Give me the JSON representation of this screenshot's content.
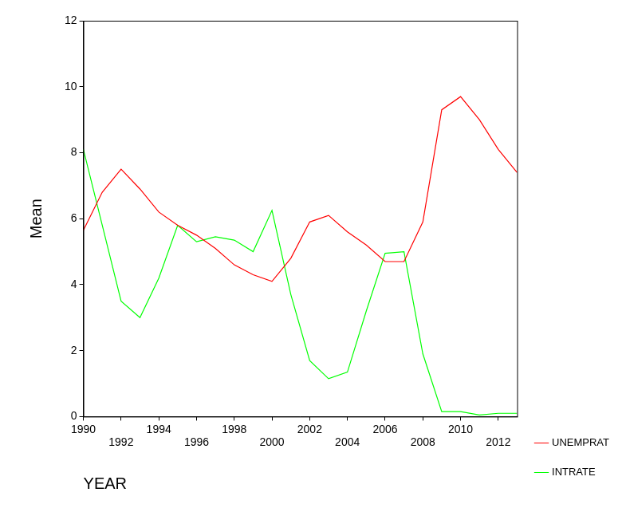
{
  "chart_data": {
    "type": "line",
    "x": [
      1990,
      1991,
      1992,
      1993,
      1994,
      1995,
      1996,
      1997,
      1998,
      1999,
      2000,
      2001,
      2002,
      2003,
      2004,
      2005,
      2006,
      2007,
      2008,
      2009,
      2010,
      2011,
      2012,
      2013
    ],
    "series": [
      {
        "name": "UNEMPRAT",
        "color": "#ff0000",
        "values": [
          5.65,
          6.8,
          7.5,
          6.9,
          6.2,
          5.8,
          5.5,
          5.1,
          4.6,
          4.3,
          4.1,
          4.8,
          5.9,
          6.1,
          5.6,
          5.2,
          4.7,
          4.7,
          5.9,
          9.3,
          9.7,
          9.0,
          8.1,
          7.4
        ]
      },
      {
        "name": "INTRATE",
        "color": "#00ff00",
        "values": [
          8.1,
          5.8,
          3.5,
          3.0,
          4.2,
          5.8,
          5.3,
          5.45,
          5.35,
          5.0,
          6.25,
          3.7,
          1.7,
          1.15,
          1.35,
          3.2,
          4.95,
          5.0,
          1.9,
          0.15,
          0.15,
          0.05,
          0.1,
          0.1
        ]
      }
    ],
    "xlabel": "YEAR",
    "ylabel": "Mean",
    "xlim": [
      1990,
      2013
    ],
    "ylim": [
      0,
      12
    ],
    "xticks": [
      1990,
      1992,
      1994,
      1996,
      1998,
      2000,
      2002,
      2004,
      2006,
      2008,
      2010,
      2012
    ],
    "yticks": [
      0,
      2,
      4,
      6,
      8,
      10,
      12
    ],
    "grid": false,
    "legend": "right"
  }
}
